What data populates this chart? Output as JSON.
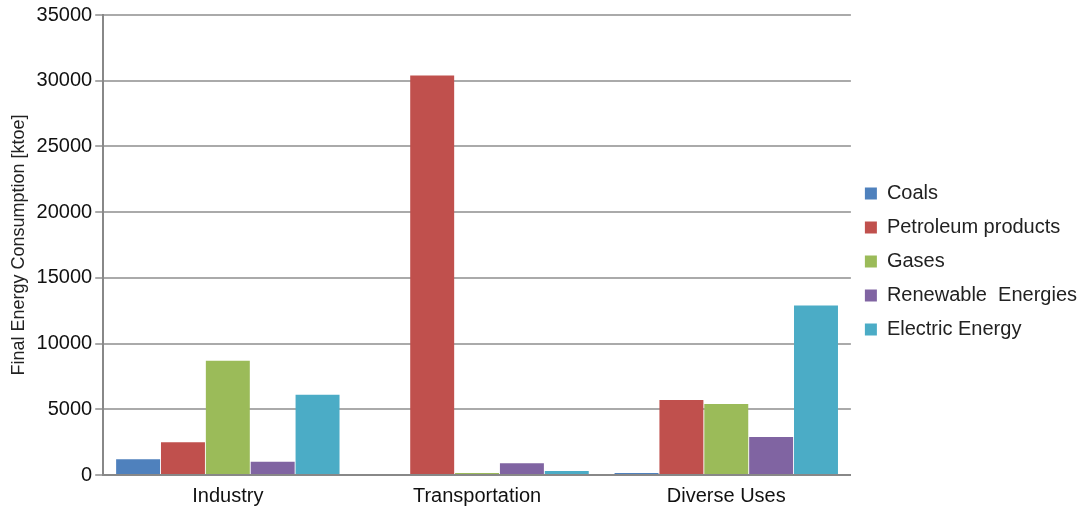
{
  "chart_data": {
    "type": "bar",
    "ylabel": "Final Energy Consumption [ktoe]",
    "categories": [
      "Industry",
      "Transportation",
      "Diverse Uses"
    ],
    "series": [
      {
        "name": "Coals",
        "color": "#4f81bd",
        "values": [
          1200,
          0,
          150
        ]
      },
      {
        "name": "Petroleum products",
        "color": "#c0504d",
        "values": [
          2500,
          30400,
          5700
        ]
      },
      {
        "name": "Gases",
        "color": "#9bbb59",
        "values": [
          8700,
          150,
          5400
        ]
      },
      {
        "name": "Renewable  Energies",
        "color": "#8064a2",
        "values": [
          1000,
          900,
          2900
        ]
      },
      {
        "name": "Electric Energy",
        "color": "#4bacc6",
        "values": [
          6100,
          300,
          12900
        ]
      }
    ],
    "ylim": [
      0,
      35000
    ],
    "yticks": [
      0,
      5000,
      10000,
      15000,
      20000,
      25000,
      30000,
      35000
    ],
    "grid": "y",
    "legend": "right"
  }
}
